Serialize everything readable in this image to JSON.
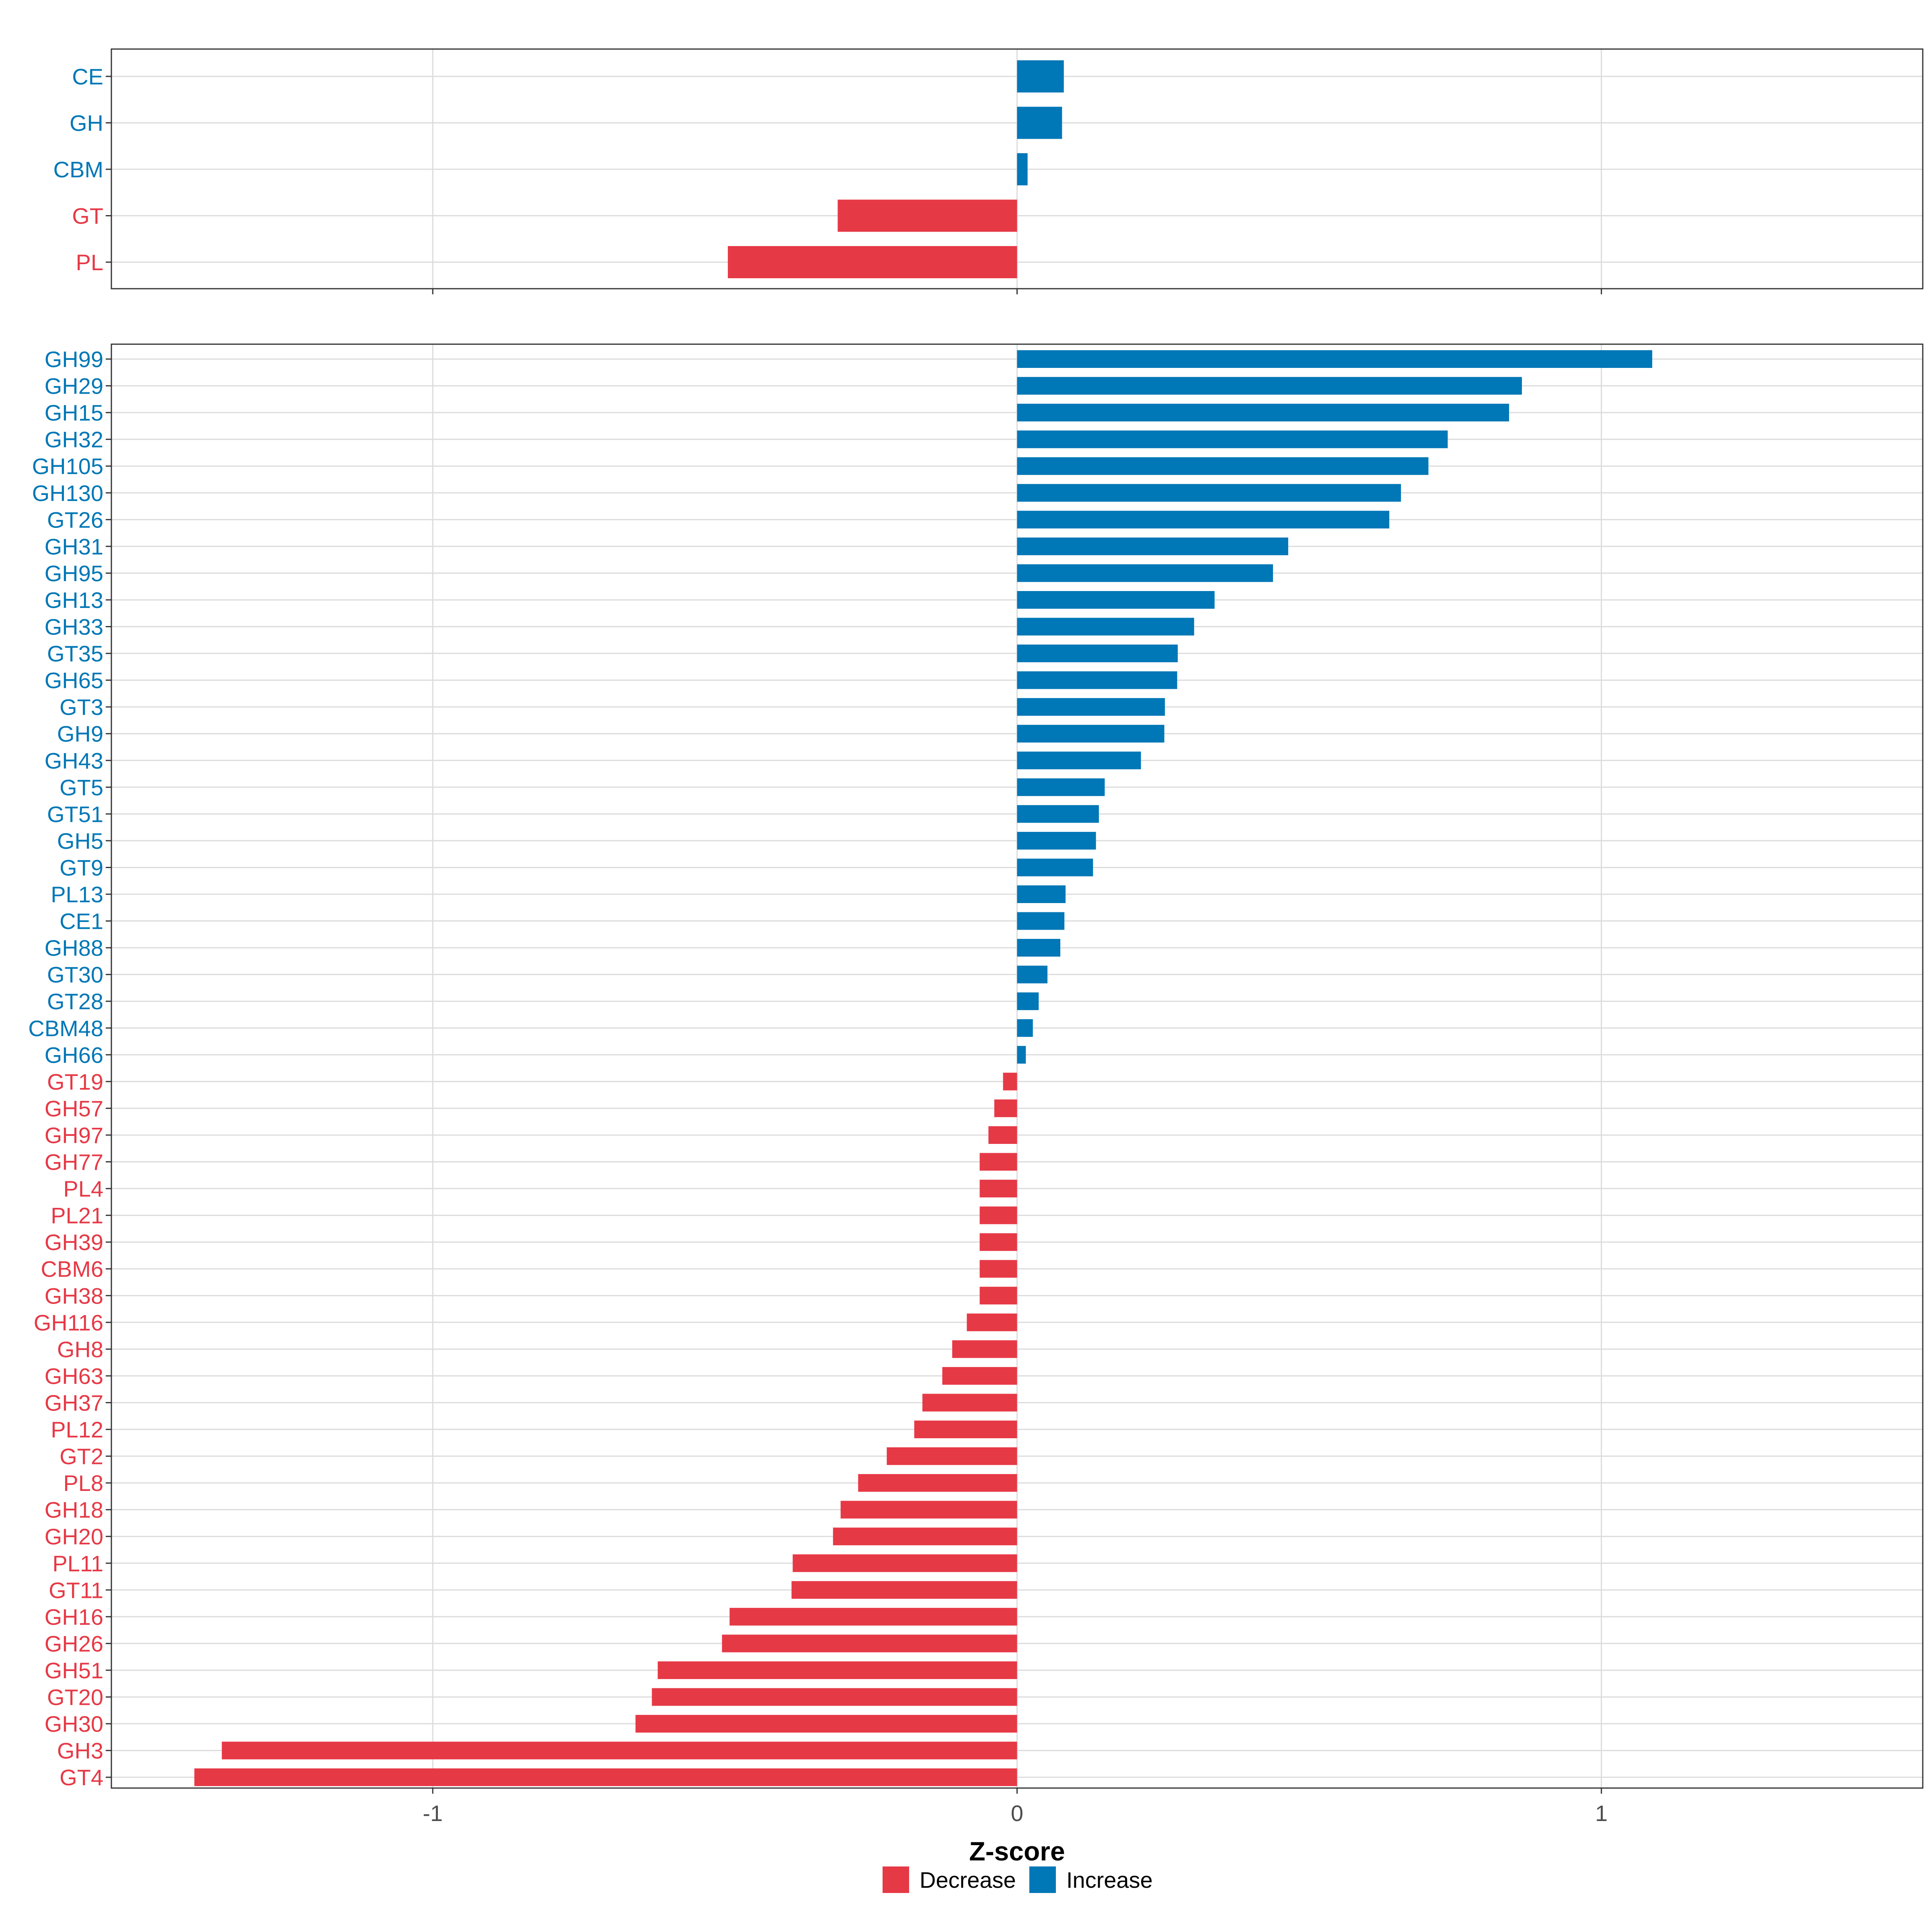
{
  "colors": {
    "decrease": "#E63946",
    "increase": "#0077B6"
  },
  "chart_data": [
    {
      "type": "bar",
      "orientation": "horizontal",
      "panel": "top",
      "categories": [
        "CE",
        "GH",
        "CBM",
        "GT",
        "PL"
      ],
      "values": [
        0.08,
        0.077,
        0.018,
        -0.307,
        -0.495
      ],
      "xlim": [
        -1.55,
        1.55
      ],
      "xticks": [
        -1,
        0,
        1
      ],
      "grid": true
    },
    {
      "type": "bar",
      "orientation": "horizontal",
      "panel": "bottom",
      "categories": [
        "GH99",
        "GH29",
        "GH15",
        "GH32",
        "GH105",
        "GH130",
        "GT26",
        "GH31",
        "GH95",
        "GH13",
        "GH33",
        "GT35",
        "GH65",
        "GT3",
        "GH9",
        "GH43",
        "GT5",
        "GT51",
        "GH5",
        "GT9",
        "PL13",
        "CE1",
        "GH88",
        "GT30",
        "GT28",
        "CBM48",
        "GH66",
        "GT19",
        "GH57",
        "GH97",
        "GH77",
        "PL4",
        "PL21",
        "GH39",
        "CBM6",
        "GH38",
        "GH116",
        "GH8",
        "GH63",
        "GH37",
        "PL12",
        "GT2",
        "PL8",
        "GH18",
        "GH20",
        "PL11",
        "GT11",
        "GH16",
        "GH26",
        "GH51",
        "GT20",
        "GH30",
        "GH3",
        "GT4"
      ],
      "values": [
        1.087,
        0.864,
        0.842,
        0.737,
        0.704,
        0.657,
        0.637,
        0.464,
        0.438,
        0.338,
        0.303,
        0.275,
        0.274,
        0.253,
        0.252,
        0.212,
        0.15,
        0.14,
        0.135,
        0.13,
        0.083,
        0.081,
        0.074,
        0.052,
        0.037,
        0.027,
        0.015,
        -0.024,
        -0.039,
        -0.049,
        -0.064,
        -0.064,
        -0.064,
        -0.064,
        -0.064,
        -0.064,
        -0.086,
        -0.111,
        -0.128,
        -0.162,
        -0.176,
        -0.223,
        -0.272,
        -0.302,
        -0.315,
        -0.384,
        -0.386,
        -0.492,
        -0.505,
        -0.615,
        -0.625,
        -0.653,
        -1.361,
        -1.408
      ],
      "xlim": [
        -1.55,
        1.55
      ],
      "xticks": [
        -1,
        0,
        1
      ],
      "xtick_labels": [
        "-1",
        "0",
        "1"
      ],
      "xlabel": "Z-score",
      "grid": true
    }
  ],
  "legend": {
    "position": "bottom",
    "items": [
      {
        "key": "decrease",
        "label": "Decrease"
      },
      {
        "key": "increase",
        "label": "Increase"
      }
    ]
  }
}
